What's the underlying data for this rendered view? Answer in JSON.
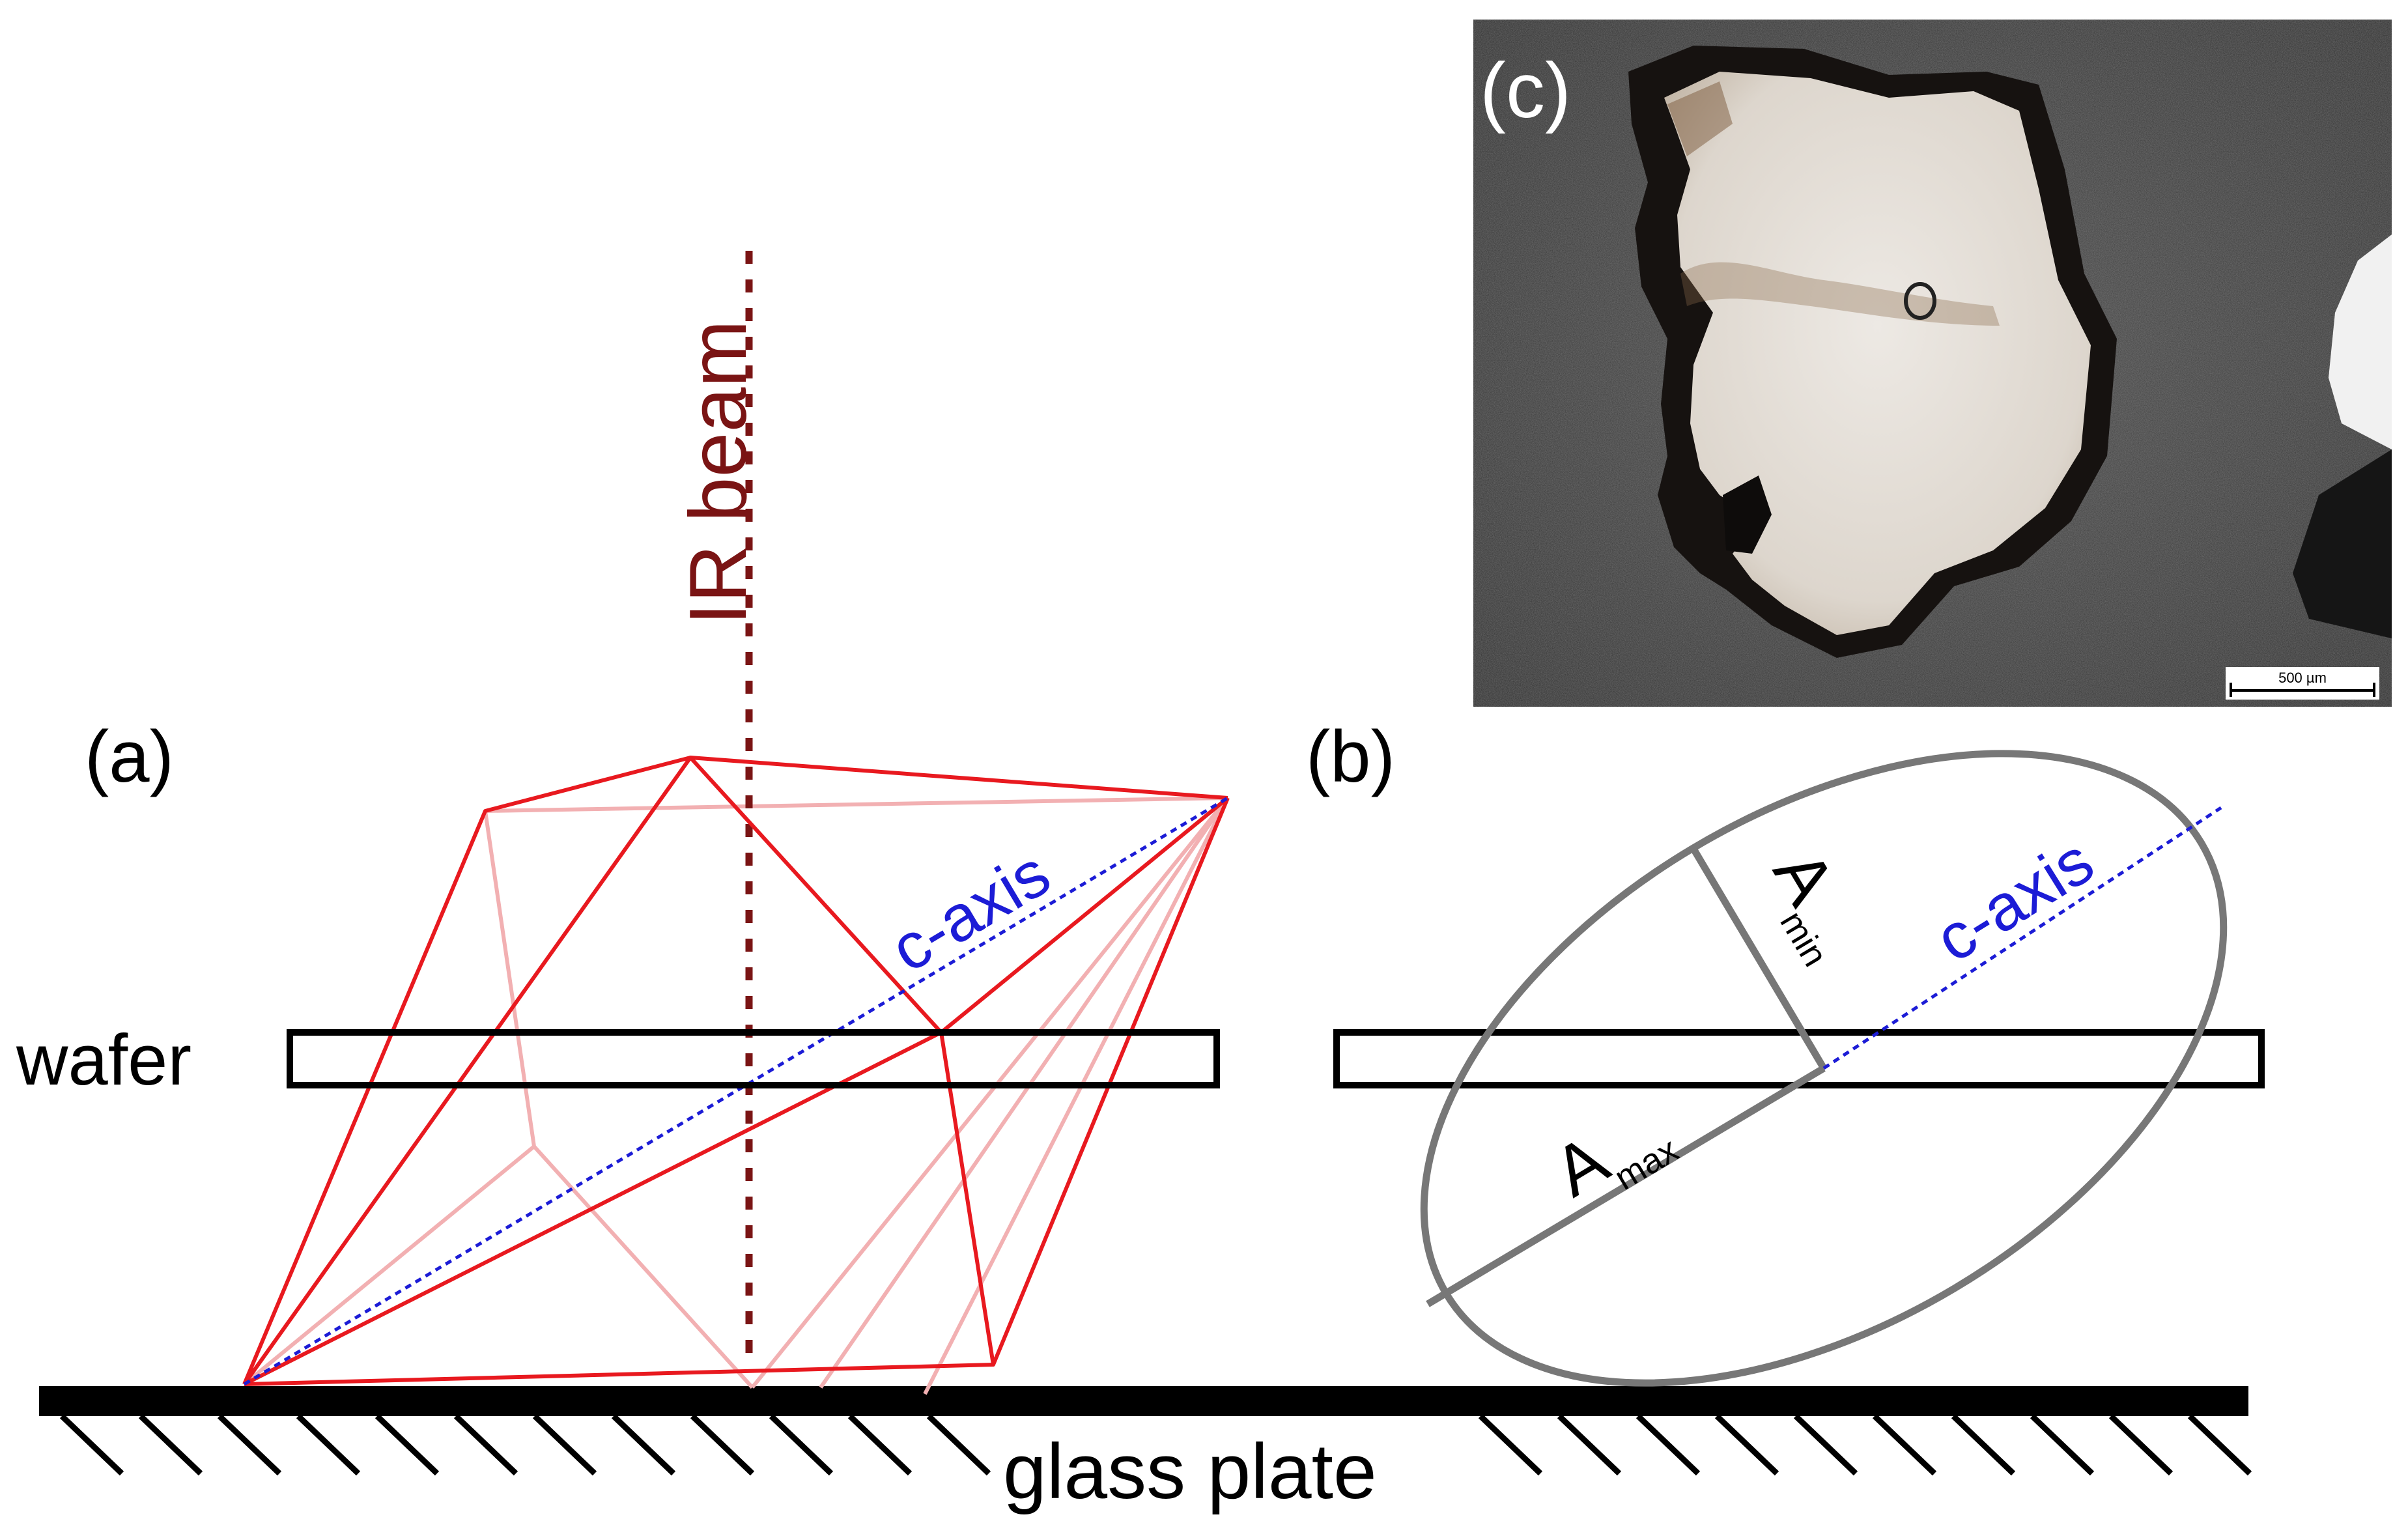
{
  "panels": {
    "a": {
      "label": "(a)"
    },
    "b": {
      "label": "(b)"
    },
    "c": {
      "label": "(c)",
      "scale_bar_text": "500 µm"
    }
  },
  "labels": {
    "ir_beam": "IR beam",
    "wafer": "wafer",
    "c_axis_a": "c-axis",
    "c_axis_b": "c-axis",
    "a_min_main": "A",
    "a_min_sub": "min",
    "a_max_main": "A",
    "a_max_sub": "max",
    "glass_plate": "glass plate"
  },
  "colors": {
    "crystal_edge": "#e8191f",
    "crystal_hidden_edge": "#f2b0b2",
    "c_axis": "#1c1cd6",
    "ir_beam": "#7a1414",
    "ellipse": "#777777",
    "ground": "#000000",
    "photo_background": "#3a3a3a",
    "crystal_photo": "#e7e2dc"
  }
}
